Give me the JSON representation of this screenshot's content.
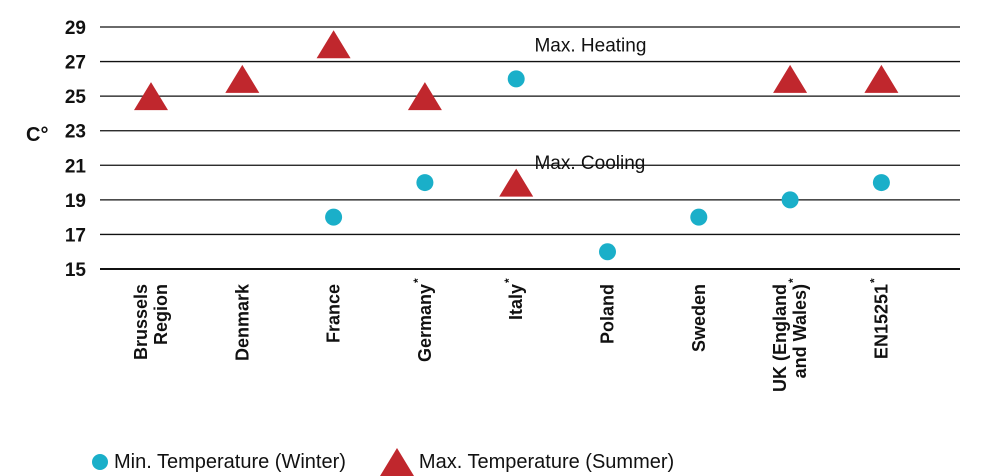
{
  "chart_data": {
    "type": "scatter",
    "ylabel": "C°",
    "yticks": [
      15,
      17,
      19,
      21,
      23,
      25,
      27,
      29
    ],
    "ylim": [
      15,
      29
    ],
    "categories": [
      {
        "lines": [
          "Brussels",
          "Region"
        ],
        "sup": ""
      },
      {
        "lines": [
          "Denmark"
        ],
        "sup": ""
      },
      {
        "lines": [
          "France"
        ],
        "sup": ""
      },
      {
        "lines": [
          "Germany"
        ],
        "sup": "*"
      },
      {
        "lines": [
          "Italy"
        ],
        "sup": "*"
      },
      {
        "lines": [
          "Poland"
        ],
        "sup": ""
      },
      {
        "lines": [
          "Sweden"
        ],
        "sup": ""
      },
      {
        "lines": [
          "UK (England",
          "and Wales)"
        ],
        "sup": "*"
      },
      {
        "lines": [
          "EN15251"
        ],
        "sup": "*"
      }
    ],
    "series": [
      {
        "name": "Min. Temperature (Winter)",
        "marker": "circle",
        "color": "#1aafc9",
        "values": [
          null,
          null,
          18,
          20,
          26,
          16,
          18,
          19,
          20
        ]
      },
      {
        "name": "Max. Temperature (Summer)",
        "marker": "triangle",
        "color": "#c0272d",
        "values": [
          25,
          26,
          28,
          25,
          20,
          null,
          null,
          26,
          26
        ]
      }
    ],
    "annotations": [
      {
        "text": "Max. Heating",
        "x": 4.2,
        "y": 28.0
      },
      {
        "text": "Max. Cooling",
        "x": 4.2,
        "y": 21.2
      }
    ],
    "grid": true,
    "legend_position": "bottom-left"
  }
}
